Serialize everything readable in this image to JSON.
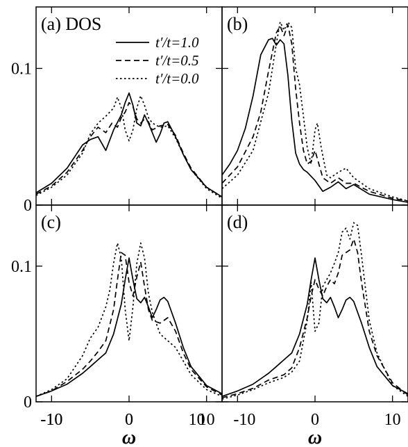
{
  "figure": {
    "x_axis_label": "ω",
    "legend": [
      {
        "label": "t′/t=1.0",
        "style": "solid"
      },
      {
        "label": "t′/t=0.5",
        "style": "dashed"
      },
      {
        "label": "t′/t=0.0",
        "style": "dotted"
      }
    ]
  },
  "chart_data": [
    {
      "type": "line",
      "panel_label": "(a) DOS",
      "xlim": [
        -12,
        12
      ],
      "ylim": [
        0,
        0.145
      ],
      "x_ticks": [
        -10,
        0,
        10
      ],
      "x_tick_labels": [
        "-10",
        "0",
        "10"
      ],
      "y_ticks": [
        0,
        0.1
      ],
      "y_tick_labels": [
        "0",
        "0.1"
      ],
      "series": [
        {
          "name": "t′/t=1.0",
          "style": "solid",
          "x": [
            -12,
            -10,
            -8,
            -6,
            -5,
            -4,
            -3,
            -2,
            -1,
            -0.5,
            0,
            0.5,
            1,
            1.5,
            2,
            2.5,
            3,
            3.5,
            4,
            4.5,
            5,
            6,
            7,
            8,
            10,
            12
          ],
          "y": [
            0.009,
            0.016,
            0.027,
            0.044,
            0.048,
            0.05,
            0.04,
            0.055,
            0.066,
            0.075,
            0.082,
            0.073,
            0.06,
            0.058,
            0.066,
            0.06,
            0.053,
            0.046,
            0.052,
            0.06,
            0.061,
            0.05,
            0.037,
            0.026,
            0.013,
            0.006
          ]
        },
        {
          "name": "t′/t=0.5",
          "style": "dashed",
          "x": [
            -12,
            -10,
            -8,
            -6,
            -5,
            -4,
            -3,
            -2.2,
            -1.5,
            -1,
            -0.5,
            0,
            0.5,
            1,
            1.5,
            2,
            2.5,
            3,
            4,
            5,
            6,
            7,
            8,
            10,
            12
          ],
          "y": [
            0.008,
            0.014,
            0.024,
            0.04,
            0.05,
            0.057,
            0.053,
            0.06,
            0.057,
            0.064,
            0.068,
            0.075,
            0.072,
            0.063,
            0.06,
            0.063,
            0.061,
            0.055,
            0.058,
            0.059,
            0.051,
            0.038,
            0.027,
            0.013,
            0.006
          ]
        },
        {
          "name": "t′/t=0.0",
          "style": "dotted",
          "x": [
            -12,
            -10,
            -8,
            -6,
            -5,
            -4,
            -3,
            -2,
            -1.5,
            -1,
            -0.5,
            0,
            0.5,
            1,
            1.5,
            2,
            2.5,
            3,
            4,
            5,
            6,
            7,
            8,
            10,
            12
          ],
          "y": [
            0.007,
            0.013,
            0.022,
            0.038,
            0.052,
            0.06,
            0.065,
            0.071,
            0.079,
            0.071,
            0.055,
            0.047,
            0.055,
            0.071,
            0.08,
            0.073,
            0.064,
            0.06,
            0.057,
            0.058,
            0.049,
            0.037,
            0.026,
            0.012,
            0.005
          ]
        }
      ]
    },
    {
      "type": "line",
      "panel_label": "(b)",
      "xlim": [
        -12,
        12
      ],
      "ylim": [
        0,
        0.145
      ],
      "x_ticks": [
        -10,
        0,
        10
      ],
      "x_tick_labels": [],
      "y_ticks": [
        0,
        0.1
      ],
      "y_tick_labels": [],
      "series": [
        {
          "name": "t′/t=1.0",
          "style": "solid",
          "x": [
            -12,
            -11,
            -10,
            -9,
            -8,
            -7,
            -6,
            -5.5,
            -5,
            -4.5,
            -4,
            -3.5,
            -3,
            -2.5,
            -2,
            -1.5,
            -1,
            0,
            1,
            2,
            3,
            4,
            5,
            7,
            10,
            12
          ],
          "y": [
            0.022,
            0.03,
            0.04,
            0.056,
            0.08,
            0.11,
            0.121,
            0.122,
            0.117,
            0.121,
            0.118,
            0.095,
            0.062,
            0.038,
            0.03,
            0.026,
            0.024,
            0.018,
            0.01,
            0.013,
            0.017,
            0.012,
            0.015,
            0.008,
            0.004,
            0.002
          ]
        },
        {
          "name": "t′/t=0.5",
          "style": "dashed",
          "x": [
            -12,
            -10,
            -8,
            -7,
            -6,
            -5,
            -4.5,
            -4,
            -3.5,
            -3,
            -2.5,
            -2,
            -1.5,
            -1,
            -0.5,
            0,
            0.5,
            1,
            2,
            3,
            4,
            5,
            7,
            10,
            12
          ],
          "y": [
            0.016,
            0.028,
            0.05,
            0.068,
            0.098,
            0.126,
            0.131,
            0.124,
            0.132,
            0.118,
            0.085,
            0.06,
            0.04,
            0.03,
            0.032,
            0.04,
            0.03,
            0.02,
            0.016,
            0.02,
            0.016,
            0.016,
            0.01,
            0.005,
            0.003
          ]
        },
        {
          "name": "t′/t=0.0",
          "style": "dotted",
          "x": [
            -12,
            -10,
            -8,
            -6,
            -5,
            -4.5,
            -4,
            -3.5,
            -3,
            -2.5,
            -2,
            -1.5,
            -1,
            -0.5,
            0,
            0.3,
            0.8,
            1.5,
            2,
            3,
            4,
            5,
            7,
            10,
            12
          ],
          "y": [
            0.012,
            0.022,
            0.04,
            0.082,
            0.118,
            0.134,
            0.128,
            0.134,
            0.13,
            0.1,
            0.088,
            0.065,
            0.042,
            0.03,
            0.055,
            0.06,
            0.042,
            0.022,
            0.02,
            0.024,
            0.027,
            0.02,
            0.012,
            0.006,
            0.003
          ]
        }
      ]
    },
    {
      "type": "line",
      "panel_label": "(c)",
      "xlim": [
        -12,
        12
      ],
      "ylim": [
        0,
        0.145
      ],
      "x_ticks": [
        -10,
        0,
        10
      ],
      "x_tick_labels": [
        "-10",
        "0",
        "10"
      ],
      "y_ticks": [
        0,
        0.1
      ],
      "y_tick_labels": [
        "0",
        "0.1"
      ],
      "series": [
        {
          "name": "t′/t=1.0",
          "style": "solid",
          "x": [
            -12,
            -10,
            -8,
            -6,
            -5,
            -4,
            -3,
            -2,
            -1,
            -0.5,
            0,
            0.5,
            1,
            1.5,
            2,
            2.5,
            3,
            3.5,
            4,
            4.5,
            5,
            6,
            7,
            8,
            10,
            12
          ],
          "y": [
            0.004,
            0.008,
            0.013,
            0.021,
            0.026,
            0.031,
            0.036,
            0.05,
            0.072,
            0.09,
            0.106,
            0.09,
            0.076,
            0.073,
            0.077,
            0.07,
            0.062,
            0.068,
            0.075,
            0.077,
            0.074,
            0.058,
            0.04,
            0.026,
            0.012,
            0.006
          ]
        },
        {
          "name": "t′/t=0.5",
          "style": "dashed",
          "x": [
            -12,
            -10,
            -8,
            -6,
            -5,
            -4,
            -3,
            -2,
            -1.5,
            -1,
            -0.5,
            0,
            0.5,
            1,
            1.5,
            2,
            2.5,
            3,
            4,
            5,
            6,
            7,
            8,
            10,
            12
          ],
          "y": [
            0.004,
            0.008,
            0.015,
            0.024,
            0.03,
            0.037,
            0.045,
            0.068,
            0.09,
            0.11,
            0.108,
            0.088,
            0.078,
            0.092,
            0.103,
            0.085,
            0.068,
            0.06,
            0.058,
            0.062,
            0.052,
            0.036,
            0.024,
            0.011,
            0.005
          ]
        },
        {
          "name": "t′/t=0.0",
          "style": "dotted",
          "x": [
            -12,
            -10,
            -8,
            -6,
            -5,
            -4,
            -3,
            -2.5,
            -2,
            -1.5,
            -1,
            -0.5,
            0,
            0.5,
            1,
            1.5,
            2,
            2.5,
            3,
            4,
            5,
            6,
            7,
            8,
            10,
            12
          ],
          "y": [
            0.004,
            0.009,
            0.017,
            0.034,
            0.047,
            0.055,
            0.07,
            0.082,
            0.102,
            0.117,
            0.106,
            0.068,
            0.045,
            0.07,
            0.102,
            0.117,
            0.106,
            0.08,
            0.066,
            0.05,
            0.045,
            0.04,
            0.03,
            0.02,
            0.009,
            0.004
          ]
        }
      ]
    },
    {
      "type": "line",
      "panel_label": "(d)",
      "xlim": [
        -12,
        12
      ],
      "ylim": [
        0,
        0.145
      ],
      "x_ticks": [
        -10,
        0,
        10
      ],
      "x_tick_labels": [
        "-10",
        "0",
        "10"
      ],
      "y_ticks": [
        0,
        0.1
      ],
      "y_tick_labels": [],
      "series": [
        {
          "name": "t′/t=1.0",
          "style": "solid",
          "x": [
            -12,
            -10,
            -8,
            -6,
            -5,
            -4,
            -3,
            -2,
            -1,
            -0.5,
            0,
            0.5,
            1,
            1.5,
            2,
            2.5,
            3,
            3.5,
            4,
            4.5,
            5,
            6,
            7,
            8,
            10,
            12
          ],
          "y": [
            0.004,
            0.008,
            0.013,
            0.021,
            0.026,
            0.031,
            0.036,
            0.05,
            0.072,
            0.09,
            0.106,
            0.09,
            0.076,
            0.073,
            0.077,
            0.07,
            0.062,
            0.068,
            0.075,
            0.077,
            0.074,
            0.058,
            0.04,
            0.026,
            0.012,
            0.006
          ]
        },
        {
          "name": "t′/t=0.5",
          "style": "dashed",
          "x": [
            -12,
            -10,
            -8,
            -6,
            -5,
            -4,
            -3,
            -2,
            -1,
            -0.5,
            0,
            0.5,
            1,
            1.5,
            2,
            2.5,
            3,
            3.5,
            4,
            4.5,
            5,
            5.5,
            6,
            7,
            8,
            10,
            12
          ],
          "y": [
            0.003,
            0.006,
            0.01,
            0.016,
            0.018,
            0.02,
            0.025,
            0.04,
            0.062,
            0.078,
            0.09,
            0.083,
            0.078,
            0.085,
            0.09,
            0.087,
            0.095,
            0.108,
            0.11,
            0.112,
            0.12,
            0.11,
            0.088,
            0.052,
            0.034,
            0.014,
            0.005
          ]
        },
        {
          "name": "t′/t=0.0",
          "style": "dotted",
          "x": [
            -12,
            -10,
            -8,
            -6,
            -5,
            -4,
            -3,
            -2,
            -1,
            -0.5,
            0,
            0.5,
            1,
            1.5,
            2,
            2.5,
            3,
            3.5,
            4,
            4.5,
            5,
            5.5,
            6,
            7,
            8,
            10,
            12
          ],
          "y": [
            0.002,
            0.005,
            0.009,
            0.014,
            0.016,
            0.018,
            0.022,
            0.03,
            0.06,
            0.088,
            0.052,
            0.058,
            0.085,
            0.09,
            0.095,
            0.102,
            0.11,
            0.125,
            0.128,
            0.12,
            0.132,
            0.13,
            0.108,
            0.06,
            0.036,
            0.012,
            0.004
          ]
        }
      ]
    }
  ]
}
